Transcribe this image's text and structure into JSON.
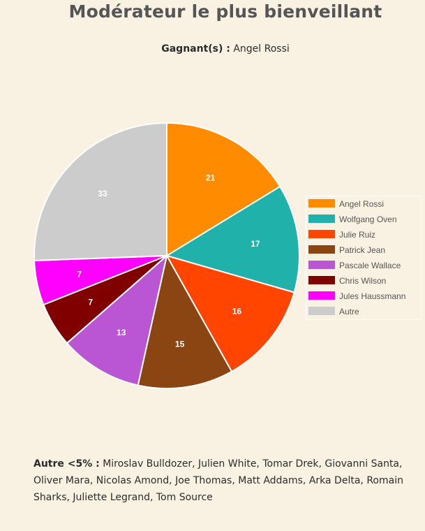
{
  "title": "Modérateur le plus bienveillant",
  "winner": {
    "label": "Gagnant(s) :",
    "value": "Angel Rossi"
  },
  "chart_data": {
    "type": "pie",
    "title": "Modérateur le plus bienveillant",
    "legend_position": "right",
    "slices": [
      {
        "name": "Angel Rossi",
        "value": 21,
        "color": "#ff8c00"
      },
      {
        "name": "Wolfgang Oven",
        "value": 17,
        "color": "#20b2aa"
      },
      {
        "name": "Julie Ruiz",
        "value": 16,
        "color": "#ff4500"
      },
      {
        "name": "Patrick Jean",
        "value": 15,
        "color": "#8b4513"
      },
      {
        "name": "Pascale Wallace",
        "value": 13,
        "color": "#ba55d3"
      },
      {
        "name": "Chris Wilson",
        "value": 7,
        "color": "#800000"
      },
      {
        "name": "Jules Haussmann",
        "value": 7,
        "color": "#ff00ff"
      },
      {
        "name": "Autre",
        "value": 33,
        "color": "#cccccc"
      }
    ]
  },
  "footnote": {
    "label": "Autre <5% :",
    "text": "Miroslav Bulldozer, Julien White, Tomar Drek, Giovanni Santa, Oliver Mara, Nicolas Amond, Joe Thomas, Matt Addams, Arka Delta, Romain Sharks, Juliette Legrand, Tom Source"
  }
}
